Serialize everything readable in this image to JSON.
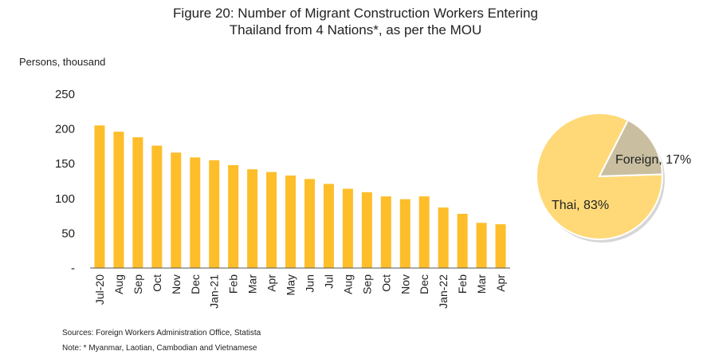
{
  "title_line1": "Figure 20: Number of Migrant Construction Workers Entering",
  "title_line2": "Thailand from 4 Nations*, as per the MOU",
  "footer": {
    "sources": "Sources: Foreign Workers Administration Office, Statista",
    "note": "Note: * Myanmar, Laotian, Cambodian and Vietnamese"
  },
  "colors": {
    "bar": "#FDBE2A",
    "pie_thai": "#FFD978",
    "pie_foreign": "#C9BFA0",
    "axis": "#555555"
  },
  "chart_data": [
    {
      "type": "bar",
      "ylabel": "Persons, thousand",
      "ylim": [
        0,
        250
      ],
      "yticks": [
        0,
        50,
        100,
        150,
        200,
        250
      ],
      "ytick_labels": [
        "-",
        "50",
        "100",
        "150",
        "200",
        "250"
      ],
      "grid": false,
      "categories": [
        "Jul-20",
        "Aug",
        "Sep",
        "Oct",
        "Nov",
        "Dec",
        "Jan-21",
        "Feb",
        "Mar",
        "Apr",
        "May",
        "Jun",
        "Jul",
        "Aug",
        "Sep",
        "Oct",
        "Nov",
        "Dec",
        "Jan-22",
        "Feb",
        "Mar",
        "Apr"
      ],
      "values": [
        205,
        196,
        188,
        176,
        166,
        159,
        155,
        148,
        142,
        138,
        133,
        128,
        121,
        114,
        109,
        103,
        99,
        103,
        87,
        78,
        65,
        63
      ]
    },
    {
      "type": "pie",
      "slices": [
        {
          "label": "Thai, 83%",
          "value": 83
        },
        {
          "label": "Foreign, 17%",
          "value": 17
        }
      ]
    }
  ]
}
